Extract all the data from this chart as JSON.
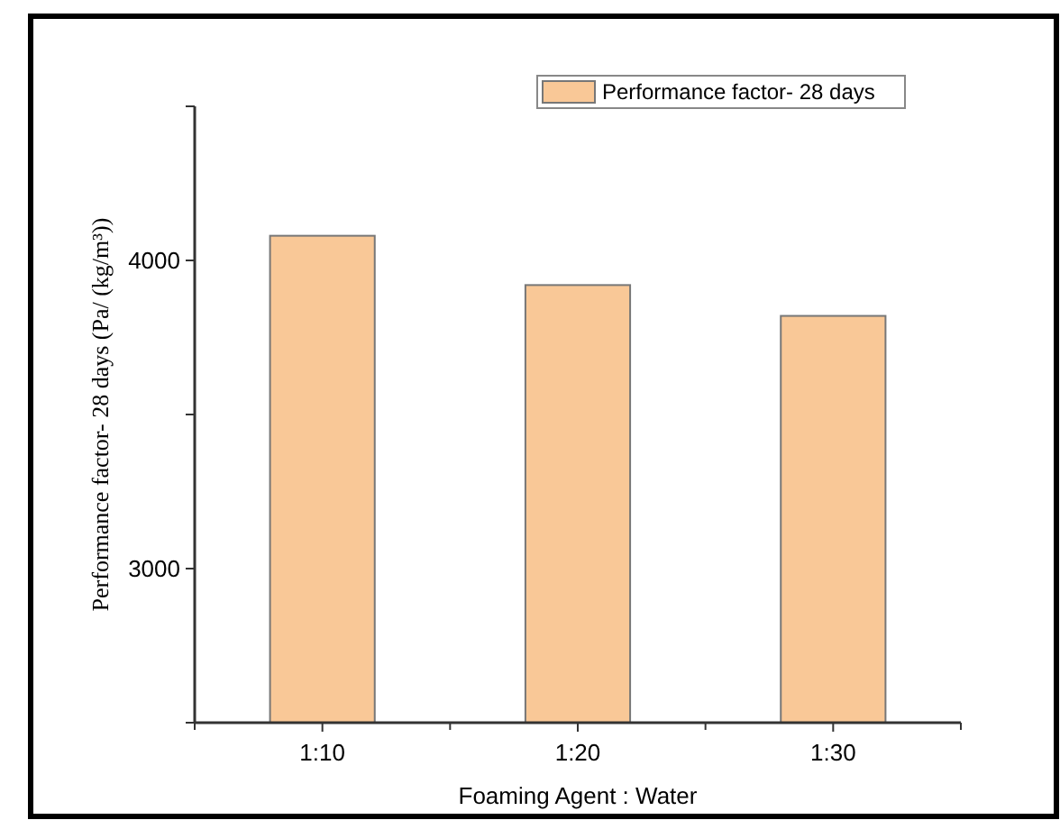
{
  "chart_data": {
    "type": "bar",
    "xlabel": "Foaming Agent : Water",
    "ylabel": "Performance factor- 28 days (Pa/ (kg/m³))",
    "categories": [
      "1:10",
      "1:20",
      "1:30"
    ],
    "series": [
      {
        "name": "Performance factor- 28 days",
        "color": "#f9c897",
        "values": [
          4080,
          3920,
          3820
        ]
      }
    ],
    "ylim": [
      2500,
      4500
    ],
    "yticks": [
      {
        "value": 2500,
        "label": null
      },
      3000,
      {
        "value": 3500,
        "label": null
      },
      4000,
      {
        "value": 4500,
        "label": null
      }
    ],
    "grid": false,
    "legend": "top right"
  }
}
